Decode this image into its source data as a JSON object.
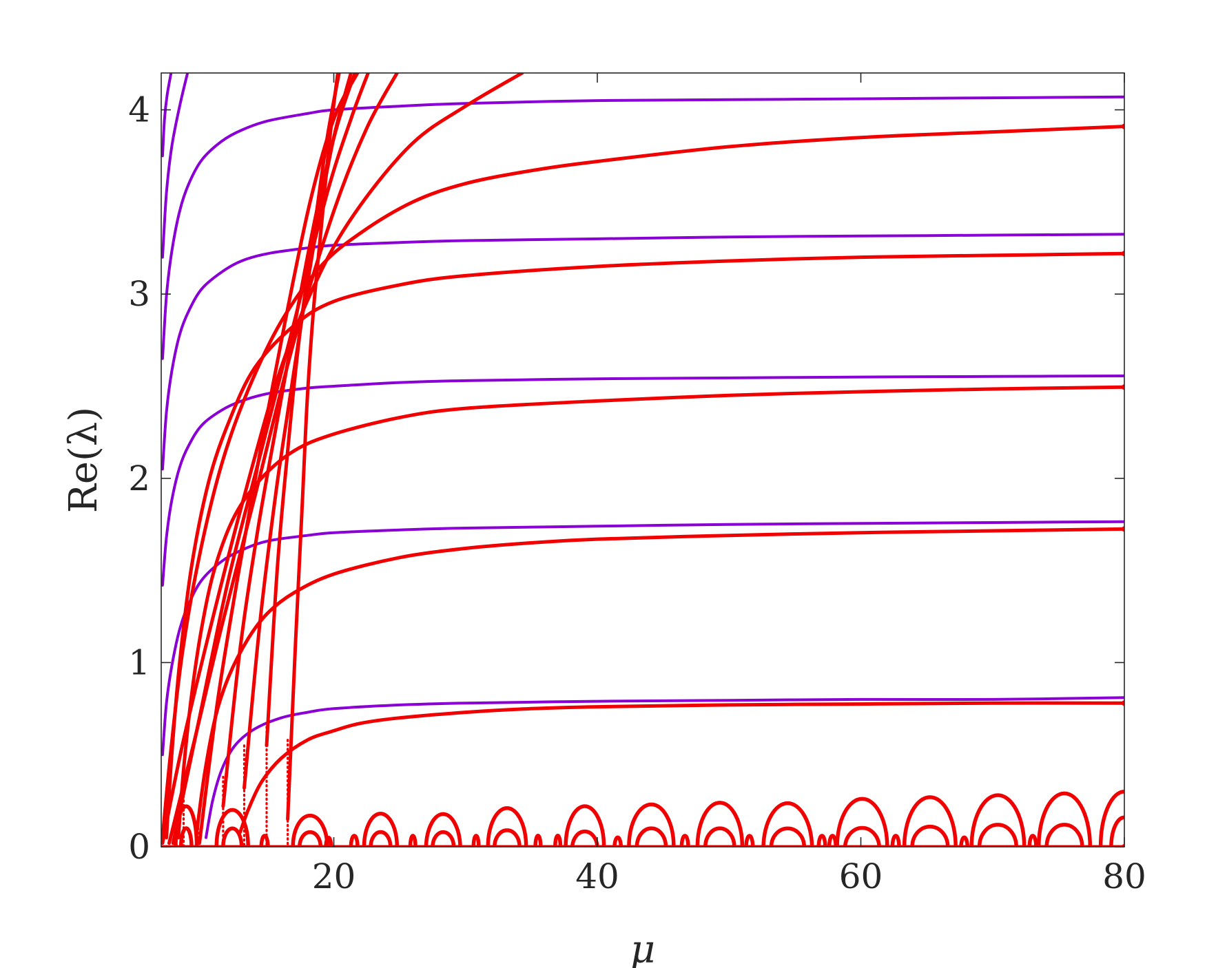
{
  "chart_data": {
    "type": "scatter",
    "title": "",
    "xlabel": "μ",
    "ylabel": "Re(λ)",
    "xlim": [
      6.9,
      80
    ],
    "ylim": [
      0,
      4.2
    ],
    "xticks": [
      20,
      40,
      60,
      80
    ],
    "yticks": [
      0,
      1,
      2,
      3,
      4
    ],
    "grid": false,
    "legend": "none",
    "colors": {
      "purple": "#8A00D4",
      "red": "#F00000",
      "axis": "#262626"
    },
    "purple_branches": [
      {
        "x": [
          7.0,
          7.5,
          8.0,
          9.0,
          10.5,
          12.5,
          15,
          20,
          30,
          40,
          60,
          80
        ],
        "y": [
          0.0,
          0.0,
          0.0,
          0.0,
          0.0,
          0.0,
          0.0,
          0.0,
          0.0,
          0.0,
          0.0,
          0.0
        ]
      },
      {
        "x": [
          10.3,
          10.8,
          11.5,
          12.5,
          14,
          16,
          18,
          20,
          25,
          30,
          40,
          50,
          60,
          70,
          80
        ],
        "y": [
          0.05,
          0.25,
          0.42,
          0.55,
          0.64,
          0.7,
          0.73,
          0.75,
          0.77,
          0.78,
          0.79,
          0.795,
          0.8,
          0.8,
          0.81
        ]
      },
      {
        "x": [
          7.0,
          7.3,
          7.7,
          8.3,
          9.0,
          10,
          11.5,
          13,
          15,
          18,
          20,
          25,
          30,
          40,
          50,
          60,
          70,
          80
        ],
        "y": [
          0.5,
          0.78,
          0.98,
          1.18,
          1.32,
          1.45,
          1.55,
          1.61,
          1.66,
          1.69,
          1.705,
          1.72,
          1.73,
          1.74,
          1.75,
          1.755,
          1.76,
          1.765
        ]
      },
      {
        "x": [
          7.0,
          7.3,
          7.7,
          8.3,
          9.0,
          10,
          11.5,
          13,
          15,
          18,
          20,
          25,
          30,
          40,
          50,
          60,
          70,
          80
        ],
        "y": [
          1.42,
          1.68,
          1.88,
          2.06,
          2.18,
          2.29,
          2.37,
          2.42,
          2.46,
          2.49,
          2.5,
          2.52,
          2.53,
          2.54,
          2.545,
          2.55,
          2.553,
          2.556
        ]
      },
      {
        "x": [
          7.0,
          7.3,
          7.7,
          8.3,
          9.0,
          10,
          11.5,
          13,
          15,
          18,
          20,
          25,
          30,
          40,
          50,
          60,
          70,
          80
        ],
        "y": [
          2.05,
          2.36,
          2.58,
          2.78,
          2.91,
          3.03,
          3.12,
          3.18,
          3.22,
          3.25,
          3.265,
          3.28,
          3.29,
          3.3,
          3.31,
          3.315,
          3.32,
          3.325
        ]
      },
      {
        "x": [
          7.0,
          7.3,
          7.7,
          8.3,
          9.0,
          10,
          11.5,
          13,
          15,
          18,
          20,
          25,
          30,
          40,
          50,
          60,
          70,
          80
        ],
        "y": [
          2.65,
          2.99,
          3.23,
          3.45,
          3.6,
          3.73,
          3.83,
          3.89,
          3.94,
          3.98,
          4.0,
          4.02,
          4.035,
          4.05,
          4.055,
          4.06,
          4.065,
          4.07
        ]
      },
      {
        "x": [
          7.0,
          7.3,
          7.7,
          8.3,
          8.9
        ],
        "y": [
          3.2,
          3.55,
          3.8,
          4.02,
          4.2
        ]
      },
      {
        "x": [
          7.0,
          7.15,
          7.35,
          7.65
        ],
        "y": [
          3.75,
          3.95,
          4.08,
          4.2
        ]
      }
    ],
    "red_branches": [
      {
        "x": [
          7.0,
          10,
          15,
          20,
          30,
          40,
          50,
          60,
          70,
          80
        ],
        "y": [
          0.0,
          0.0,
          0.0,
          0.0,
          0.0,
          0.0,
          0.0,
          0.0,
          0.0,
          0.0
        ]
      },
      {
        "x": [
          12.9,
          13.5,
          14.5,
          16,
          18,
          20,
          22,
          25,
          30,
          35,
          40,
          50,
          60,
          70,
          80
        ],
        "y": [
          0.08,
          0.2,
          0.35,
          0.48,
          0.58,
          0.63,
          0.67,
          0.7,
          0.73,
          0.75,
          0.76,
          0.77,
          0.775,
          0.78,
          0.78
        ]
      },
      {
        "x": [
          9.6,
          10.2,
          11,
          12,
          13.5,
          15,
          17,
          20,
          25,
          30,
          35,
          40,
          50,
          60,
          70,
          80
        ],
        "y": [
          0.08,
          0.4,
          0.7,
          0.92,
          1.13,
          1.27,
          1.38,
          1.48,
          1.57,
          1.62,
          1.65,
          1.67,
          1.69,
          1.705,
          1.715,
          1.725
        ]
      },
      {
        "x": [
          8.2,
          8.6,
          9.2,
          10,
          11,
          12.5,
          14.5,
          17,
          20,
          25,
          30,
          40,
          50,
          60,
          70,
          80
        ],
        "y": [
          0.05,
          0.42,
          0.82,
          1.2,
          1.52,
          1.8,
          2.0,
          2.15,
          2.24,
          2.33,
          2.38,
          2.42,
          2.45,
          2.47,
          2.485,
          2.495
        ]
      },
      {
        "x": [
          7.3,
          7.7,
          8.3,
          9.2,
          10.5,
          12,
          14,
          17,
          20,
          25,
          30,
          40,
          50,
          60,
          70,
          80
        ],
        "y": [
          0.05,
          0.5,
          1.0,
          1.52,
          1.98,
          2.3,
          2.6,
          2.83,
          2.96,
          3.05,
          3.1,
          3.15,
          3.18,
          3.2,
          3.21,
          3.22
        ]
      },
      {
        "x": [
          7.0,
          7.6,
          8.5,
          9.8,
          11.5,
          13.5,
          16,
          19,
          22,
          26,
          30,
          35,
          40,
          50,
          60,
          70,
          80
        ],
        "y": [
          0.05,
          0.5,
          1.05,
          1.58,
          2.08,
          2.48,
          2.85,
          3.15,
          3.33,
          3.5,
          3.6,
          3.67,
          3.72,
          3.8,
          3.85,
          3.88,
          3.91
        ]
      },
      {
        "x": [
          7.0,
          8.5,
          10.5,
          13,
          16,
          19,
          22,
          26,
          30,
          34.3
        ],
        "y": [
          0.02,
          0.55,
          1.15,
          1.85,
          2.6,
          3.12,
          3.48,
          3.82,
          4.02,
          4.2
        ]
      },
      {
        "x": [
          7.5,
          9.5,
          11.5,
          14,
          17,
          20,
          22.5,
          24.8
        ],
        "y": [
          0.02,
          0.6,
          1.2,
          1.9,
          2.75,
          3.45,
          3.9,
          4.2
        ]
      },
      {
        "x": [
          7.8,
          9.8,
          12,
          14.5,
          17,
          19.5,
          21.3,
          22.6
        ],
        "y": [
          0.02,
          0.7,
          1.45,
          2.15,
          2.85,
          3.55,
          3.95,
          4.2
        ]
      },
      {
        "x": [
          9.8,
          11.2,
          12.8,
          14.5,
          16.3,
          18.2,
          20,
          21.8
        ],
        "y": [
          0.02,
          0.8,
          1.5,
          2.18,
          2.85,
          3.5,
          3.95,
          4.2
        ]
      },
      {
        "x": [
          11.6,
          12.9,
          14.3,
          15.8,
          17.2,
          18.7,
          20.2,
          21.6
        ],
        "y": [
          0.22,
          1.08,
          1.75,
          2.35,
          2.9,
          3.45,
          3.9,
          4.2
        ]
      },
      {
        "x": [
          13.2,
          14.4,
          15.6,
          16.7,
          17.7,
          18.8,
          20,
          21.3
        ],
        "y": [
          0.32,
          1.22,
          1.92,
          2.45,
          2.92,
          3.4,
          3.85,
          4.2
        ]
      },
      {
        "x": [
          14.9,
          15.7,
          16.5,
          17.2,
          17.9,
          18.7,
          19.5,
          20.4
        ],
        "y": [
          0.55,
          1.5,
          2.15,
          2.65,
          3.05,
          3.45,
          3.85,
          4.2
        ]
      },
      {
        "x": [
          16.5,
          17.1,
          17.6,
          18.0,
          18.5,
          19.1,
          19.7,
          20.3
        ],
        "y": [
          0.15,
          1.12,
          1.85,
          2.45,
          2.95,
          3.4,
          3.85,
          4.2
        ]
      }
    ],
    "red_dotted_drops": [
      {
        "x": 8.6,
        "y_top": 0.3
      },
      {
        "x": 9.7,
        "y_top": 0.15
      },
      {
        "x": 11.6,
        "y_top": 0.38
      },
      {
        "x": 13.2,
        "y_top": 0.55
      },
      {
        "x": 14.9,
        "y_top": 0.65
      },
      {
        "x": 16.5,
        "y_top": 0.58
      }
    ],
    "red_arches": [
      {
        "x1": 8.0,
        "x2": 9.6,
        "h": 0.22
      },
      {
        "x1": 8.4,
        "x2": 9.2,
        "h": 0.1
      },
      {
        "x1": 11.1,
        "x2": 13.5,
        "h": 0.2
      },
      {
        "x1": 11.6,
        "x2": 13.0,
        "h": 0.1
      },
      {
        "x1": 14.5,
        "x2": 15.0,
        "h": 0.06
      },
      {
        "x1": 16.9,
        "x2": 19.5,
        "h": 0.17
      },
      {
        "x1": 17.4,
        "x2": 19.0,
        "h": 0.08
      },
      {
        "x1": 19.4,
        "x2": 19.8,
        "h": 0.05
      },
      {
        "x1": 21.3,
        "x2": 21.8,
        "h": 0.06
      },
      {
        "x1": 22.3,
        "x2": 24.8,
        "h": 0.18
      },
      {
        "x1": 22.8,
        "x2": 24.3,
        "h": 0.08
      },
      {
        "x1": 25.8,
        "x2": 26.2,
        "h": 0.06
      },
      {
        "x1": 27.0,
        "x2": 29.6,
        "h": 0.19
      },
      {
        "x1": 27.5,
        "x2": 29.1,
        "h": 0.08
      },
      {
        "x1": 30.6,
        "x2": 31.0,
        "h": 0.06
      },
      {
        "x1": 31.7,
        "x2": 34.6,
        "h": 0.21
      },
      {
        "x1": 32.2,
        "x2": 34.1,
        "h": 0.09
      },
      {
        "x1": 35.3,
        "x2": 35.7,
        "h": 0.06
      },
      {
        "x1": 36.8,
        "x2": 37.2,
        "h": 0.06
      },
      {
        "x1": 37.6,
        "x2": 40.5,
        "h": 0.22
      },
      {
        "x1": 38.1,
        "x2": 40.0,
        "h": 0.09
      },
      {
        "x1": 41.3,
        "x2": 41.8,
        "h": 0.06
      },
      {
        "x1": 42.4,
        "x2": 45.8,
        "h": 0.23
      },
      {
        "x1": 43.0,
        "x2": 45.2,
        "h": 0.1
      },
      {
        "x1": 46.4,
        "x2": 46.9,
        "h": 0.06
      },
      {
        "x1": 47.6,
        "x2": 51.0,
        "h": 0.24
      },
      {
        "x1": 48.2,
        "x2": 50.4,
        "h": 0.1
      },
      {
        "x1": 51.3,
        "x2": 51.8,
        "h": 0.06
      },
      {
        "x1": 52.6,
        "x2": 56.3,
        "h": 0.25
      },
      {
        "x1": 53.2,
        "x2": 55.7,
        "h": 0.1
      },
      {
        "x1": 56.8,
        "x2": 57.3,
        "h": 0.06
      },
      {
        "x1": 57.6,
        "x2": 58.1,
        "h": 0.06
      },
      {
        "x1": 58.2,
        "x2": 62.0,
        "h": 0.26
      },
      {
        "x1": 58.8,
        "x2": 61.4,
        "h": 0.11
      },
      {
        "x1": 62.4,
        "x2": 62.9,
        "h": 0.06
      },
      {
        "x1": 63.3,
        "x2": 67.2,
        "h": 0.27
      },
      {
        "x1": 63.9,
        "x2": 66.6,
        "h": 0.11
      },
      {
        "x1": 67.6,
        "x2": 68.1,
        "h": 0.06
      },
      {
        "x1": 68.4,
        "x2": 72.4,
        "h": 0.28
      },
      {
        "x1": 69.0,
        "x2": 71.8,
        "h": 0.12
      },
      {
        "x1": 72.8,
        "x2": 73.3,
        "h": 0.06
      },
      {
        "x1": 73.5,
        "x2": 77.4,
        "h": 0.29
      },
      {
        "x1": 74.1,
        "x2": 76.8,
        "h": 0.12
      },
      {
        "x1": 78.2,
        "x2": 81.8,
        "h": 0.3
      },
      {
        "x1": 79.0,
        "x2": 81.0,
        "h": 0.16
      }
    ]
  }
}
